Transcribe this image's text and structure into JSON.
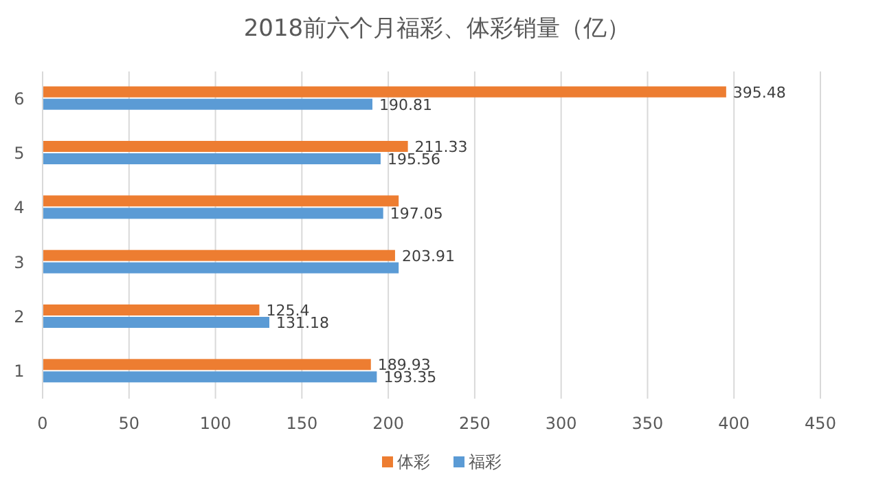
{
  "chart_data": {
    "type": "bar",
    "orientation": "horizontal",
    "title": "2018前六个月福彩、体彩销量（亿）",
    "categories": [
      "6",
      "5",
      "4",
      "3",
      "2",
      "1"
    ],
    "series": [
      {
        "name": "体彩",
        "color": "#ed7d31",
        "values": [
          395.48,
          211.33,
          206,
          203.91,
          125.4,
          189.93
        ],
        "value_labels": [
          "395.48",
          "211.33",
          null,
          "203.91",
          "125.4",
          "189.93"
        ]
      },
      {
        "name": "福彩",
        "color": "#5b9bd5",
        "values": [
          190.81,
          195.56,
          197.05,
          206,
          131.18,
          193.35
        ],
        "value_labels": [
          "190.81",
          "195.56",
          "197.05",
          null,
          "131.18",
          "193.35"
        ]
      }
    ],
    "xlim": [
      0,
      450
    ],
    "xticks": [
      0,
      50,
      100,
      150,
      200,
      250,
      300,
      350,
      400,
      450
    ],
    "grid": "x",
    "legend": "bottom"
  }
}
